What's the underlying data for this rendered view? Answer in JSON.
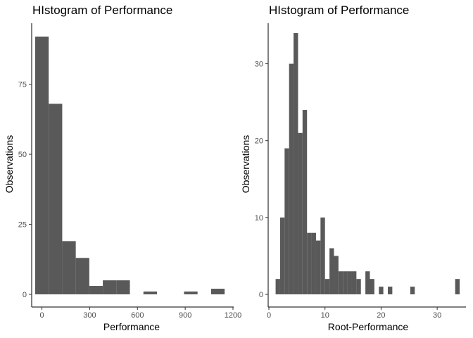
{
  "chart_data": [
    {
      "type": "bar",
      "title": "HIstogram of Performance",
      "xlabel": "Performance",
      "ylabel": "Observations",
      "xlim": [
        -60,
        1200
      ],
      "ylim": [
        0,
        96
      ],
      "xticks": [
        0,
        300,
        600,
        900,
        1200
      ],
      "yticks": [
        0,
        25,
        50,
        75
      ],
      "bin_width": 85,
      "bins": [
        {
          "x": 0,
          "count": 92
        },
        {
          "x": 85,
          "count": 68
        },
        {
          "x": 170,
          "count": 19
        },
        {
          "x": 255,
          "count": 13
        },
        {
          "x": 340,
          "count": 3
        },
        {
          "x": 425,
          "count": 5
        },
        {
          "x": 510,
          "count": 5
        },
        {
          "x": 595,
          "count": 0
        },
        {
          "x": 680,
          "count": 1
        },
        {
          "x": 765,
          "count": 0
        },
        {
          "x": 850,
          "count": 0
        },
        {
          "x": 935,
          "count": 1
        },
        {
          "x": 1020,
          "count": 0
        },
        {
          "x": 1105,
          "count": 2
        }
      ]
    },
    {
      "type": "bar",
      "title": "HIstogram of Performance",
      "xlabel": "Root-Performance",
      "ylabel": "Observations",
      "xlim": [
        0,
        35
      ],
      "ylim": [
        0,
        35
      ],
      "xticks": [
        0,
        10,
        20,
        30
      ],
      "yticks": [
        0,
        10,
        20,
        30
      ],
      "bin_width": 0.8,
      "bins": [
        {
          "x": 1.6,
          "count": 2
        },
        {
          "x": 2.4,
          "count": 10
        },
        {
          "x": 3.2,
          "count": 19
        },
        {
          "x": 4.0,
          "count": 30
        },
        {
          "x": 4.8,
          "count": 34
        },
        {
          "x": 5.6,
          "count": 21
        },
        {
          "x": 6.4,
          "count": 24
        },
        {
          "x": 7.2,
          "count": 8
        },
        {
          "x": 8.0,
          "count": 8
        },
        {
          "x": 8.8,
          "count": 7
        },
        {
          "x": 9.6,
          "count": 10
        },
        {
          "x": 10.4,
          "count": 2
        },
        {
          "x": 11.2,
          "count": 6
        },
        {
          "x": 12.0,
          "count": 5
        },
        {
          "x": 12.8,
          "count": 3
        },
        {
          "x": 13.6,
          "count": 3
        },
        {
          "x": 14.4,
          "count": 3
        },
        {
          "x": 15.2,
          "count": 3
        },
        {
          "x": 16.0,
          "count": 2
        },
        {
          "x": 17.6,
          "count": 3
        },
        {
          "x": 18.4,
          "count": 2
        },
        {
          "x": 20.0,
          "count": 1
        },
        {
          "x": 21.6,
          "count": 1
        },
        {
          "x": 25.6,
          "count": 1
        },
        {
          "x": 33.6,
          "count": 2
        }
      ]
    }
  ]
}
